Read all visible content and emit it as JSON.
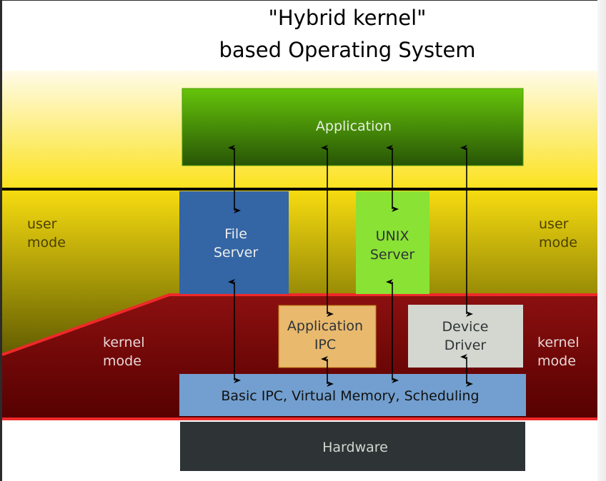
{
  "title": {
    "line1": "\"Hybrid kernel\"",
    "line2": "based Operating System"
  },
  "labels": {
    "user_mode_left": [
      "user",
      "mode"
    ],
    "user_mode_right": [
      "user",
      "mode"
    ],
    "kernel_mode_left": [
      "kernel",
      "mode"
    ],
    "kernel_mode_right": [
      "kernel",
      "mode"
    ]
  },
  "boxes": {
    "application": "Application",
    "file_server": [
      "File",
      "Server"
    ],
    "unix_server": [
      "UNIX",
      "Server"
    ],
    "application_ipc": [
      "Application",
      "IPC"
    ],
    "device_driver": [
      "Device",
      "Driver"
    ],
    "kernel_core": "Basic IPC, Virtual Memory, Scheduling",
    "hardware": "Hardware"
  },
  "colors": {
    "application": [
      "#66c40a",
      "#2a5a05"
    ],
    "file_server": "#3465a4",
    "unix_server": "#8ae234",
    "application_ipc": "#e9b96e",
    "device_driver": "#d3d7cf",
    "kernel_core": "#729fcf",
    "hardware": "#2e3436",
    "kernel_region": [
      "#8a0f0f",
      "#5a0000"
    ],
    "kernel_border": "#ef2929",
    "user_region": [
      "#fff8e0",
      "#f7dc10",
      "#6b6400"
    ]
  }
}
